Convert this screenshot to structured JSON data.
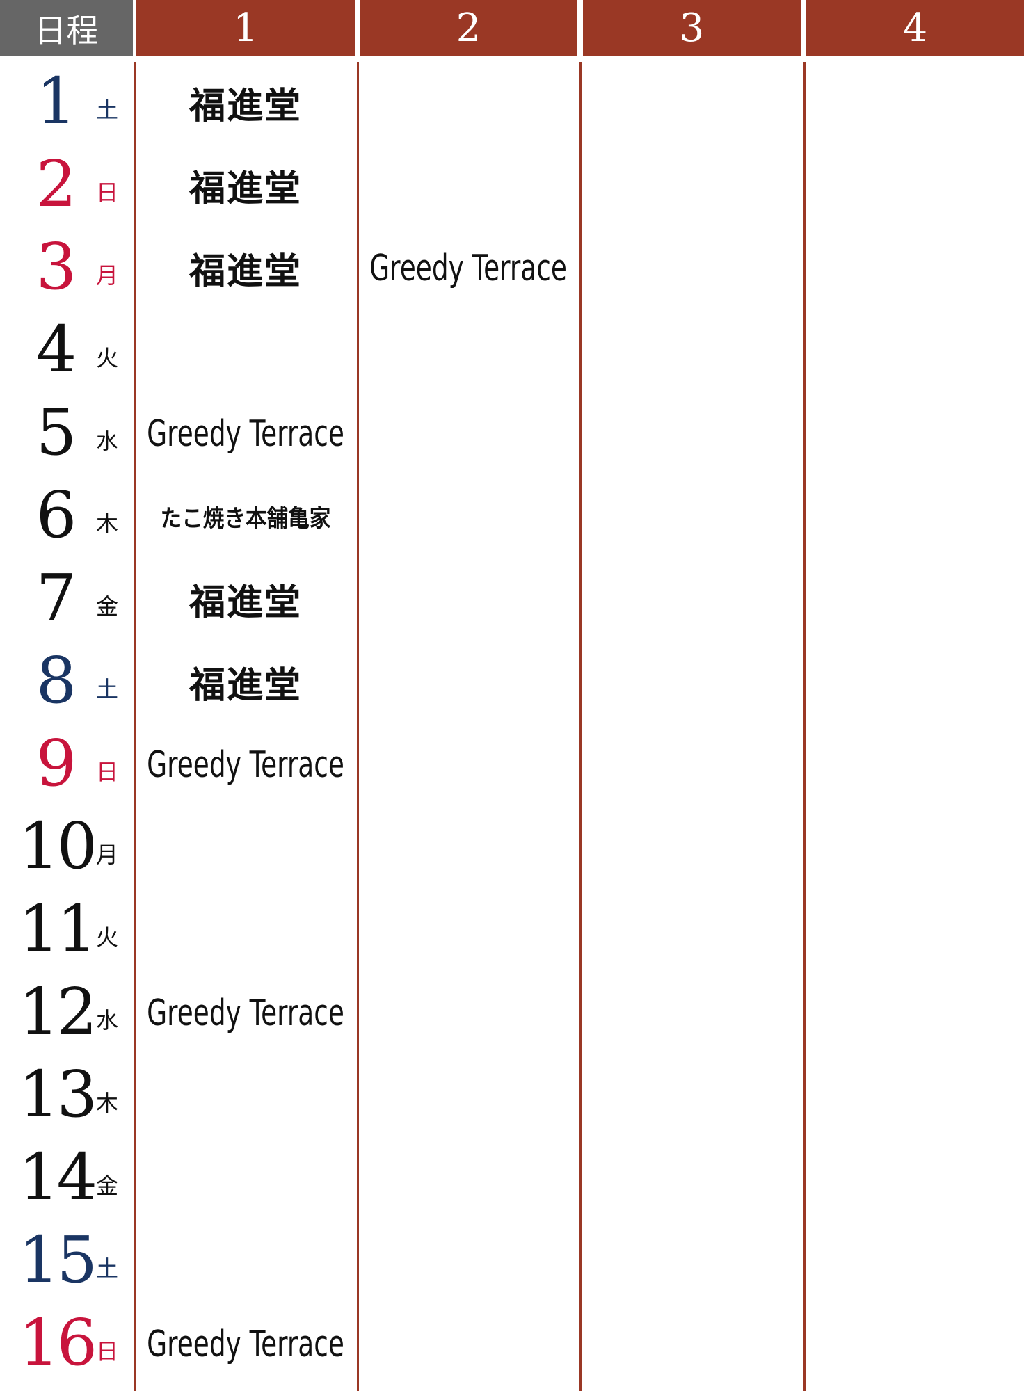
{
  "header": {
    "schedule_label": "日程",
    "columns": [
      "1",
      "2",
      "3",
      "4"
    ]
  },
  "colors": {
    "header_red": "#9a3825",
    "header_gray": "#666666",
    "saturday": "#1a3563",
    "holiday": "#c8143c",
    "weekday": "#111111"
  },
  "rows": [
    {
      "date": "1",
      "day": "土",
      "type": "saturday",
      "cells": [
        "福進堂",
        "",
        "",
        ""
      ]
    },
    {
      "date": "2",
      "day": "日",
      "type": "holiday",
      "cells": [
        "福進堂",
        "",
        "",
        ""
      ]
    },
    {
      "date": "3",
      "day": "月",
      "type": "holiday",
      "cells": [
        "福進堂",
        "Greedy Terrace",
        "",
        ""
      ]
    },
    {
      "date": "4",
      "day": "火",
      "type": "weekday",
      "cells": [
        "",
        "",
        "",
        ""
      ]
    },
    {
      "date": "5",
      "day": "水",
      "type": "weekday",
      "cells": [
        "Greedy Terrace",
        "",
        "",
        ""
      ]
    },
    {
      "date": "6",
      "day": "木",
      "type": "weekday",
      "cells": [
        "たこ焼き本舗亀家",
        "",
        "",
        ""
      ]
    },
    {
      "date": "7",
      "day": "金",
      "type": "weekday",
      "cells": [
        "福進堂",
        "",
        "",
        ""
      ]
    },
    {
      "date": "8",
      "day": "土",
      "type": "saturday",
      "cells": [
        "福進堂",
        "",
        "",
        ""
      ]
    },
    {
      "date": "9",
      "day": "日",
      "type": "holiday",
      "cells": [
        "Greedy Terrace",
        "",
        "",
        ""
      ]
    },
    {
      "date": "10",
      "day": "月",
      "type": "weekday",
      "cells": [
        "",
        "",
        "",
        ""
      ]
    },
    {
      "date": "11",
      "day": "火",
      "type": "weekday",
      "cells": [
        "",
        "",
        "",
        ""
      ]
    },
    {
      "date": "12",
      "day": "水",
      "type": "weekday",
      "cells": [
        "Greedy Terrace",
        "",
        "",
        ""
      ]
    },
    {
      "date": "13",
      "day": "木",
      "type": "weekday",
      "cells": [
        "",
        "",
        "",
        ""
      ]
    },
    {
      "date": "14",
      "day": "金",
      "type": "weekday",
      "cells": [
        "",
        "",
        "",
        ""
      ]
    },
    {
      "date": "15",
      "day": "土",
      "type": "saturday",
      "cells": [
        "",
        "",
        "",
        ""
      ]
    },
    {
      "date": "16",
      "day": "日",
      "type": "holiday",
      "cells": [
        "Greedy Terrace",
        "",
        "",
        ""
      ]
    }
  ]
}
